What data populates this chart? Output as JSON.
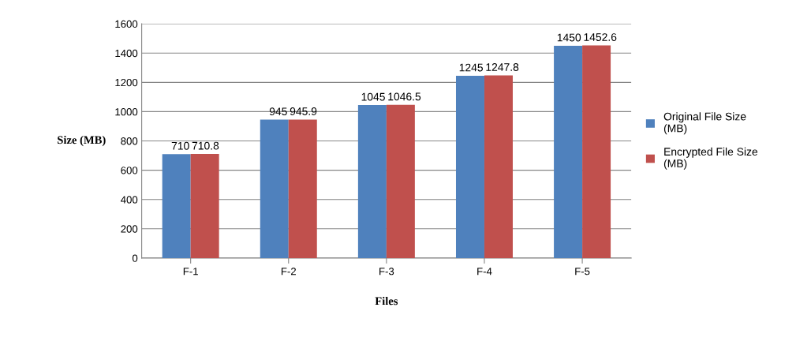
{
  "chart_data": {
    "type": "bar",
    "xlabel": "Files",
    "ylabel": "Size (MB)",
    "categories": [
      "F-1",
      "F-2",
      "F-3",
      "F-4",
      "F-5"
    ],
    "series": [
      {
        "name": "Original File Size (MB)",
        "color": "#4f81bd",
        "values": [
          710,
          945,
          1045,
          1245,
          1450
        ]
      },
      {
        "name": "Encrypted File Size (MB)",
        "color": "#c0504d",
        "values": [
          710.8,
          945.9,
          1046.5,
          1247.8,
          1452.6
        ]
      }
    ],
    "ylim": [
      0,
      1600
    ],
    "yticks": [
      0,
      200,
      400,
      600,
      800,
      1000,
      1200,
      1400,
      1600
    ],
    "grid": "y",
    "legend": "right",
    "data_labels": true
  }
}
